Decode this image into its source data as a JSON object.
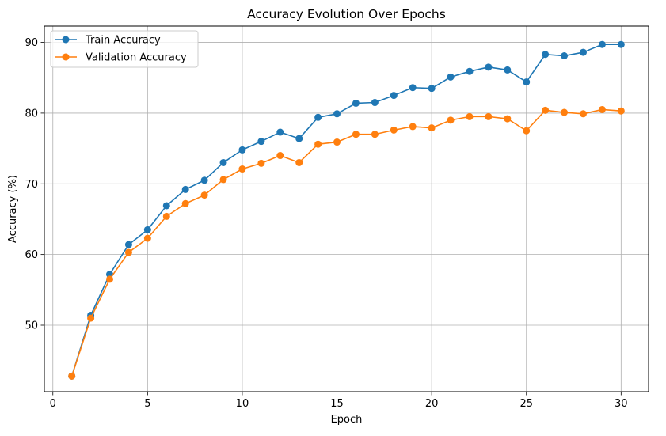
{
  "chart_data": {
    "type": "line",
    "title": "Accuracy Evolution Over Epochs",
    "xlabel": "Epoch",
    "ylabel": "Accuracy (%)",
    "xlim": [
      -0.45,
      31.45
    ],
    "ylim": [
      40.6,
      92.3
    ],
    "xticks": [
      0,
      5,
      10,
      15,
      20,
      25,
      30
    ],
    "yticks": [
      50,
      60,
      70,
      80,
      90
    ],
    "grid": true,
    "legend_position": "top-left",
    "x": [
      1,
      2,
      3,
      4,
      5,
      6,
      7,
      8,
      9,
      10,
      11,
      12,
      13,
      14,
      15,
      16,
      17,
      18,
      19,
      20,
      21,
      22,
      23,
      24,
      25,
      26,
      27,
      28,
      29,
      30
    ],
    "series": [
      {
        "name": "Train Accuracy",
        "color": "#1f77b4",
        "values": [
          42.8,
          51.4,
          57.2,
          61.4,
          63.5,
          66.9,
          69.2,
          70.5,
          73.0,
          74.8,
          76.0,
          77.3,
          76.4,
          79.4,
          79.9,
          81.4,
          81.5,
          82.5,
          83.6,
          83.5,
          85.1,
          85.9,
          86.5,
          86.1,
          84.4,
          88.3,
          88.1,
          88.6,
          89.7,
          89.7
        ]
      },
      {
        "name": "Validation Accuracy",
        "color": "#ff7f0e",
        "values": [
          42.8,
          51.0,
          56.5,
          60.3,
          62.3,
          65.4,
          67.2,
          68.4,
          70.6,
          72.1,
          72.9,
          74.0,
          73.0,
          75.6,
          75.9,
          77.0,
          77.0,
          77.6,
          78.1,
          77.9,
          79.0,
          79.5,
          79.5,
          79.2,
          77.5,
          80.4,
          80.1,
          79.9,
          80.5,
          80.3
        ]
      }
    ]
  }
}
